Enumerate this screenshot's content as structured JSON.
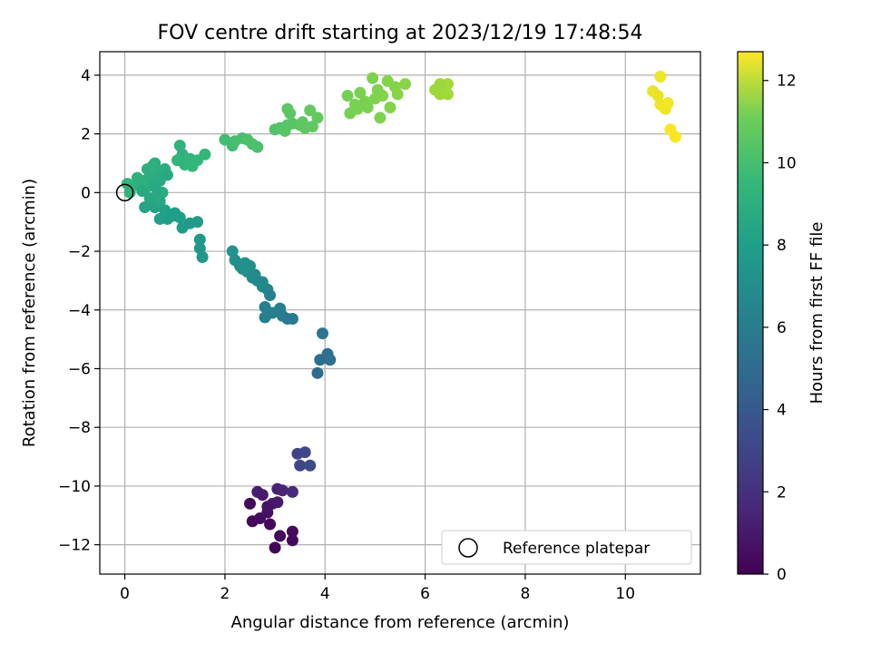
{
  "chart_data": {
    "type": "scatter",
    "title": "FOV centre drift starting at 2023/12/19 17:48:54",
    "xlabel": "Angular distance from reference (arcmin)",
    "ylabel": "Rotation from reference (arcmin)",
    "xlim": [
      -0.5,
      11.5
    ],
    "ylim": [
      -13,
      4.8
    ],
    "xticks": [
      0,
      2,
      4,
      6,
      8,
      10
    ],
    "yticks": [
      -12,
      -10,
      -8,
      -6,
      -4,
      -2,
      0,
      2,
      4
    ],
    "grid": true,
    "colormap": "viridis",
    "colorbar": {
      "label": "Hours from first FF file",
      "range": [
        0,
        12.7
      ],
      "ticks": [
        0,
        2,
        4,
        6,
        8,
        10,
        12
      ]
    },
    "legend": {
      "position": "lower right",
      "entries": [
        "Reference platepar"
      ]
    },
    "reference_point": {
      "x": 0,
      "y": 0
    },
    "points": [
      {
        "x": 2.5,
        "y": -10.6,
        "c": 0.3
      },
      {
        "x": 2.55,
        "y": -11.2,
        "c": 0.2
      },
      {
        "x": 2.7,
        "y": -11.1,
        "c": 0.4
      },
      {
        "x": 2.85,
        "y": -10.9,
        "c": 0.5
      },
      {
        "x": 2.9,
        "y": -11.3,
        "c": 0.3
      },
      {
        "x": 3.0,
        "y": -12.1,
        "c": 0.1
      },
      {
        "x": 3.1,
        "y": -11.7,
        "c": 0.2
      },
      {
        "x": 3.35,
        "y": -11.85,
        "c": 0.3
      },
      {
        "x": 3.35,
        "y": -11.55,
        "c": 0.4
      },
      {
        "x": 2.95,
        "y": -10.6,
        "c": 0.8
      },
      {
        "x": 2.65,
        "y": -10.2,
        "c": 1.0
      },
      {
        "x": 2.75,
        "y": -10.3,
        "c": 0.9
      },
      {
        "x": 3.05,
        "y": -10.1,
        "c": 1.2
      },
      {
        "x": 3.15,
        "y": -10.15,
        "c": 1.3
      },
      {
        "x": 3.35,
        "y": -10.2,
        "c": 1.5
      },
      {
        "x": 2.85,
        "y": -10.7,
        "c": 0.7
      },
      {
        "x": 3.05,
        "y": -10.55,
        "c": 0.9
      },
      {
        "x": 3.45,
        "y": -8.9,
        "c": 2.6
      },
      {
        "x": 3.6,
        "y": -8.85,
        "c": 2.8
      },
      {
        "x": 3.5,
        "y": -9.3,
        "c": 2.7
      },
      {
        "x": 3.7,
        "y": -9.3,
        "c": 2.9
      },
      {
        "x": 3.95,
        "y": -4.8,
        "c": 5.0
      },
      {
        "x": 3.9,
        "y": -5.7,
        "c": 4.6
      },
      {
        "x": 4.05,
        "y": -5.5,
        "c": 4.7
      },
      {
        "x": 4.1,
        "y": -5.7,
        "c": 4.8
      },
      {
        "x": 3.85,
        "y": -6.15,
        "c": 4.5
      },
      {
        "x": 2.15,
        "y": -2.0,
        "c": 6.5
      },
      {
        "x": 2.2,
        "y": -2.3,
        "c": 6.4
      },
      {
        "x": 2.3,
        "y": -2.5,
        "c": 6.3
      },
      {
        "x": 2.4,
        "y": -2.4,
        "c": 6.4
      },
      {
        "x": 2.45,
        "y": -2.7,
        "c": 6.2
      },
      {
        "x": 2.55,
        "y": -2.9,
        "c": 6.1
      },
      {
        "x": 2.65,
        "y": -3.0,
        "c": 6.0
      },
      {
        "x": 2.75,
        "y": -3.2,
        "c": 5.9
      },
      {
        "x": 2.85,
        "y": -3.3,
        "c": 5.8
      },
      {
        "x": 2.75,
        "y": -3.05,
        "c": 6.0
      },
      {
        "x": 2.9,
        "y": -3.5,
        "c": 5.7
      },
      {
        "x": 2.8,
        "y": -3.9,
        "c": 5.6
      },
      {
        "x": 2.8,
        "y": -4.25,
        "c": 5.5
      },
      {
        "x": 2.95,
        "y": -4.1,
        "c": 5.5
      },
      {
        "x": 3.1,
        "y": -3.95,
        "c": 5.4
      },
      {
        "x": 3.15,
        "y": -4.2,
        "c": 5.3
      },
      {
        "x": 3.25,
        "y": -4.3,
        "c": 5.3
      },
      {
        "x": 3.35,
        "y": -4.3,
        "c": 5.2
      },
      {
        "x": 2.35,
        "y": -2.6,
        "c": 6.3
      },
      {
        "x": 2.5,
        "y": -2.5,
        "c": 6.3
      },
      {
        "x": 2.6,
        "y": -2.8,
        "c": 6.1
      },
      {
        "x": 0.4,
        "y": -0.5,
        "c": 7.4
      },
      {
        "x": 0.6,
        "y": -0.5,
        "c": 7.3
      },
      {
        "x": 0.7,
        "y": -0.9,
        "c": 7.2
      },
      {
        "x": 0.85,
        "y": -0.9,
        "c": 7.1
      },
      {
        "x": 1.0,
        "y": -0.7,
        "c": 7.1
      },
      {
        "x": 1.1,
        "y": -0.85,
        "c": 7.0
      },
      {
        "x": 1.15,
        "y": -1.2,
        "c": 7.0
      },
      {
        "x": 1.3,
        "y": -1.05,
        "c": 6.9
      },
      {
        "x": 1.45,
        "y": -1.0,
        "c": 6.9
      },
      {
        "x": 1.5,
        "y": -1.6,
        "c": 6.8
      },
      {
        "x": 1.5,
        "y": -1.9,
        "c": 6.8
      },
      {
        "x": 1.55,
        "y": -2.2,
        "c": 6.7
      },
      {
        "x": 0.8,
        "y": -0.6,
        "c": 7.2
      },
      {
        "x": 0.95,
        "y": -0.8,
        "c": 7.1
      },
      {
        "x": 0.05,
        "y": 0.3,
        "c": 8.3
      },
      {
        "x": 0.1,
        "y": 0.0,
        "c": 8.2
      },
      {
        "x": 0.2,
        "y": 0.25,
        "c": 8.1
      },
      {
        "x": 0.25,
        "y": 0.5,
        "c": 8.1
      },
      {
        "x": 0.35,
        "y": 0.4,
        "c": 8.0
      },
      {
        "x": 0.4,
        "y": 0.1,
        "c": 8.0
      },
      {
        "x": 0.45,
        "y": 0.8,
        "c": 8.0
      },
      {
        "x": 0.5,
        "y": 0.6,
        "c": 7.9
      },
      {
        "x": 0.55,
        "y": 0.3,
        "c": 7.9
      },
      {
        "x": 0.6,
        "y": 1.0,
        "c": 7.9
      },
      {
        "x": 0.65,
        "y": 0.7,
        "c": 7.9
      },
      {
        "x": 0.7,
        "y": 0.4,
        "c": 7.8
      },
      {
        "x": 0.75,
        "y": 0.0,
        "c": 7.8
      },
      {
        "x": 0.8,
        "y": 0.8,
        "c": 7.8
      },
      {
        "x": 0.85,
        "y": 0.6,
        "c": 7.7
      },
      {
        "x": 0.5,
        "y": -0.2,
        "c": 7.6
      },
      {
        "x": 0.6,
        "y": 0.2,
        "c": 7.7
      },
      {
        "x": 0.35,
        "y": 0.05,
        "c": 7.7
      },
      {
        "x": 0.7,
        "y": -0.3,
        "c": 7.6
      },
      {
        "x": 0.55,
        "y": 0.9,
        "c": 8.0
      },
      {
        "x": 0.65,
        "y": -0.1,
        "c": 7.7
      },
      {
        "x": 1.1,
        "y": 1.6,
        "c": 8.2
      },
      {
        "x": 1.15,
        "y": 1.3,
        "c": 8.2
      },
      {
        "x": 1.05,
        "y": 1.1,
        "c": 8.3
      },
      {
        "x": 1.2,
        "y": 0.95,
        "c": 8.3
      },
      {
        "x": 1.35,
        "y": 0.9,
        "c": 8.4
      },
      {
        "x": 1.45,
        "y": 1.1,
        "c": 8.4
      },
      {
        "x": 1.6,
        "y": 1.3,
        "c": 8.4
      },
      {
        "x": 1.3,
        "y": 1.15,
        "c": 8.3
      },
      {
        "x": 2.0,
        "y": 1.8,
        "c": 8.8
      },
      {
        "x": 2.15,
        "y": 1.6,
        "c": 8.8
      },
      {
        "x": 2.2,
        "y": 1.75,
        "c": 8.9
      },
      {
        "x": 2.35,
        "y": 1.85,
        "c": 8.9
      },
      {
        "x": 2.45,
        "y": 1.8,
        "c": 9.0
      },
      {
        "x": 2.55,
        "y": 1.65,
        "c": 9.0
      },
      {
        "x": 2.65,
        "y": 1.55,
        "c": 9.0
      },
      {
        "x": 3.0,
        "y": 2.15,
        "c": 9.2
      },
      {
        "x": 3.1,
        "y": 2.2,
        "c": 9.2
      },
      {
        "x": 3.2,
        "y": 2.1,
        "c": 9.3
      },
      {
        "x": 3.25,
        "y": 2.3,
        "c": 9.3
      },
      {
        "x": 3.35,
        "y": 2.35,
        "c": 9.3
      },
      {
        "x": 3.25,
        "y": 2.85,
        "c": 9.4
      },
      {
        "x": 3.3,
        "y": 2.7,
        "c": 9.4
      },
      {
        "x": 3.55,
        "y": 2.4,
        "c": 9.5
      },
      {
        "x": 3.6,
        "y": 2.2,
        "c": 9.5
      },
      {
        "x": 3.75,
        "y": 2.25,
        "c": 9.5
      },
      {
        "x": 3.7,
        "y": 2.8,
        "c": 9.6
      },
      {
        "x": 3.85,
        "y": 2.55,
        "c": 9.6
      },
      {
        "x": 3.5,
        "y": 2.3,
        "c": 9.4
      },
      {
        "x": 4.45,
        "y": 3.3,
        "c": 10.0
      },
      {
        "x": 4.5,
        "y": 2.7,
        "c": 10.0
      },
      {
        "x": 4.6,
        "y": 3.0,
        "c": 10.1
      },
      {
        "x": 4.7,
        "y": 3.4,
        "c": 10.1
      },
      {
        "x": 4.8,
        "y": 3.1,
        "c": 10.1
      },
      {
        "x": 4.85,
        "y": 2.9,
        "c": 10.1
      },
      {
        "x": 4.95,
        "y": 3.9,
        "c": 10.2
      },
      {
        "x": 5.05,
        "y": 3.5,
        "c": 10.2
      },
      {
        "x": 5.1,
        "y": 2.55,
        "c": 10.2
      },
      {
        "x": 5.15,
        "y": 3.3,
        "c": 10.3
      },
      {
        "x": 5.25,
        "y": 3.8,
        "c": 10.3
      },
      {
        "x": 5.3,
        "y": 2.9,
        "c": 10.3
      },
      {
        "x": 5.4,
        "y": 3.6,
        "c": 10.3
      },
      {
        "x": 5.45,
        "y": 3.35,
        "c": 10.4
      },
      {
        "x": 5.6,
        "y": 3.7,
        "c": 10.4
      },
      {
        "x": 4.65,
        "y": 2.85,
        "c": 10.1
      },
      {
        "x": 5.0,
        "y": 3.2,
        "c": 10.2
      },
      {
        "x": 6.2,
        "y": 3.5,
        "c": 10.8
      },
      {
        "x": 6.3,
        "y": 3.35,
        "c": 10.8
      },
      {
        "x": 6.35,
        "y": 3.6,
        "c": 10.8
      },
      {
        "x": 6.45,
        "y": 3.7,
        "c": 10.9
      },
      {
        "x": 6.45,
        "y": 3.35,
        "c": 10.9
      },
      {
        "x": 6.3,
        "y": 3.7,
        "c": 10.8
      },
      {
        "x": 10.7,
        "y": 3.95,
        "c": 12.4
      },
      {
        "x": 10.55,
        "y": 3.45,
        "c": 12.3
      },
      {
        "x": 10.65,
        "y": 3.3,
        "c": 12.3
      },
      {
        "x": 10.7,
        "y": 3.0,
        "c": 12.4
      },
      {
        "x": 10.8,
        "y": 2.85,
        "c": 12.4
      },
      {
        "x": 10.85,
        "y": 3.05,
        "c": 12.5
      },
      {
        "x": 10.9,
        "y": 2.15,
        "c": 12.6
      },
      {
        "x": 11.0,
        "y": 1.9,
        "c": 12.6
      }
    ]
  }
}
